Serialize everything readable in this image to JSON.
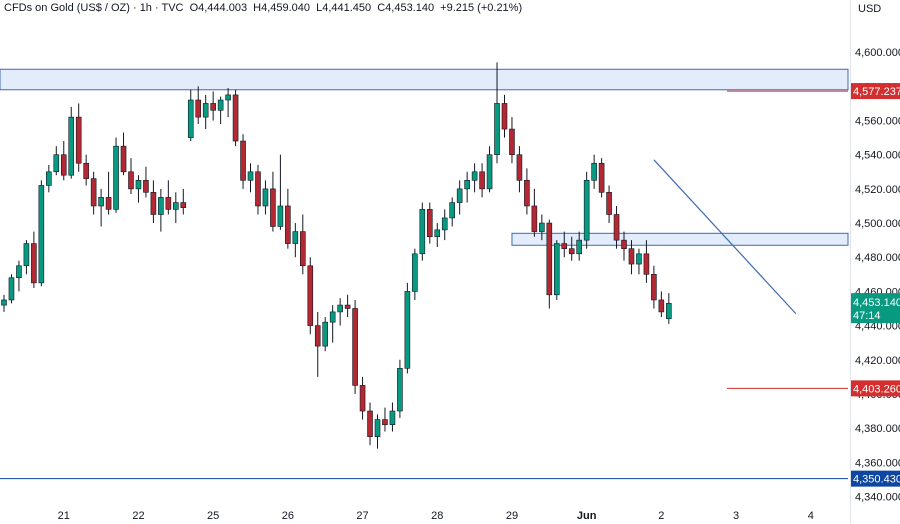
{
  "header": {
    "symbol": "CFDs on Gold (US$ / OZ) · 1h · TVC",
    "open": "O4,444.003",
    "high": "H4,459.040",
    "low": "L4,441.450",
    "close": "C4,453.140",
    "change": "+9.215 (+0.21%)"
  },
  "currency": "USD",
  "colors": {
    "up": "#26a69a",
    "down": "#ef5350",
    "wick": "#131722",
    "up_body": "#089981",
    "down_body": "#b22833",
    "zone_fill": "#e3ecfa",
    "zone_line": "#3d6bb3",
    "trend_line": "#3d6bb3",
    "level_red": "#d32f2f",
    "level_blue": "#0d47a1"
  },
  "chart_data": {
    "type": "candlestick",
    "title": "CFDs on Gold (US$ / OZ) · 1h · TVC",
    "ylim": [
      4335,
      4620
    ],
    "y_ticks": [
      4600,
      4580,
      4560,
      4540,
      4520,
      4500,
      4480,
      4460,
      4440,
      4420,
      4400,
      4380,
      4360,
      4340
    ],
    "y_tick_labels": [
      "4,600.000",
      "4,580.000",
      "4,560.000",
      "4,540.000",
      "4,520.000",
      "4,500.000",
      "4,480.000",
      "4,460.000",
      "4,440.000",
      "4,420.000",
      "4,400.000",
      "4,380.000",
      "4,360.000",
      "4,340.000"
    ],
    "x_labels": [
      {
        "label": "21",
        "slot": 8
      },
      {
        "label": "22",
        "slot": 18
      },
      {
        "label": "25",
        "slot": 28
      },
      {
        "label": "26",
        "slot": 38
      },
      {
        "label": "27",
        "slot": 48
      },
      {
        "label": "28",
        "slot": 58
      },
      {
        "label": "29",
        "slot": 68
      },
      {
        "label": "Jun",
        "slot": 78
      },
      {
        "label": "2",
        "slot": 88
      },
      {
        "label": "3",
        "slot": 98
      },
      {
        "label": "4",
        "slot": 108
      }
    ],
    "candles": [
      {
        "o": 4452,
        "h": 4458,
        "l": 4448,
        "c": 4455
      },
      {
        "o": 4455,
        "h": 4470,
        "l": 4453,
        "c": 4468
      },
      {
        "o": 4468,
        "h": 4478,
        "l": 4460,
        "c": 4475
      },
      {
        "o": 4475,
        "h": 4490,
        "l": 4470,
        "c": 4488
      },
      {
        "o": 4488,
        "h": 4495,
        "l": 4462,
        "c": 4465
      },
      {
        "o": 4465,
        "h": 4525,
        "l": 4463,
        "c": 4522
      },
      {
        "o": 4522,
        "h": 4534,
        "l": 4518,
        "c": 4530
      },
      {
        "o": 4530,
        "h": 4545,
        "l": 4528,
        "c": 4540
      },
      {
        "o": 4540,
        "h": 4548,
        "l": 4525,
        "c": 4528
      },
      {
        "o": 4528,
        "h": 4568,
        "l": 4526,
        "c": 4562
      },
      {
        "o": 4562,
        "h": 4570,
        "l": 4530,
        "c": 4535
      },
      {
        "o": 4535,
        "h": 4540,
        "l": 4522,
        "c": 4526
      },
      {
        "o": 4526,
        "h": 4530,
        "l": 4505,
        "c": 4510
      },
      {
        "o": 4510,
        "h": 4520,
        "l": 4498,
        "c": 4515
      },
      {
        "o": 4515,
        "h": 4530,
        "l": 4505,
        "c": 4508
      },
      {
        "o": 4508,
        "h": 4550,
        "l": 4506,
        "c": 4545
      },
      {
        "o": 4545,
        "h": 4553,
        "l": 4528,
        "c": 4530
      },
      {
        "o": 4530,
        "h": 4538,
        "l": 4517,
        "c": 4520
      },
      {
        "o": 4520,
        "h": 4528,
        "l": 4512,
        "c": 4525
      },
      {
        "o": 4525,
        "h": 4533,
        "l": 4515,
        "c": 4518
      },
      {
        "o": 4518,
        "h": 4525,
        "l": 4500,
        "c": 4505
      },
      {
        "o": 4505,
        "h": 4520,
        "l": 4495,
        "c": 4515
      },
      {
        "o": 4515,
        "h": 4525,
        "l": 4505,
        "c": 4508
      },
      {
        "o": 4508,
        "h": 4518,
        "l": 4500,
        "c": 4512
      },
      {
        "o": 4512,
        "h": 4520,
        "l": 4505,
        "c": 4509
      },
      {
        "o": 4550,
        "h": 4578,
        "l": 4548,
        "c": 4572
      },
      {
        "o": 4572,
        "h": 4580,
        "l": 4558,
        "c": 4562
      },
      {
        "o": 4562,
        "h": 4575,
        "l": 4555,
        "c": 4570
      },
      {
        "o": 4570,
        "h": 4577,
        "l": 4560,
        "c": 4566
      },
      {
        "o": 4566,
        "h": 4574,
        "l": 4558,
        "c": 4572
      },
      {
        "o": 4572,
        "h": 4579,
        "l": 4562,
        "c": 4575
      },
      {
        "o": 4575,
        "h": 4578,
        "l": 4545,
        "c": 4548
      },
      {
        "o": 4548,
        "h": 4552,
        "l": 4520,
        "c": 4525
      },
      {
        "o": 4525,
        "h": 4535,
        "l": 4518,
        "c": 4530
      },
      {
        "o": 4530,
        "h": 4534,
        "l": 4505,
        "c": 4510
      },
      {
        "o": 4510,
        "h": 4525,
        "l": 4505,
        "c": 4520
      },
      {
        "o": 4520,
        "h": 4530,
        "l": 4495,
        "c": 4498
      },
      {
        "o": 4498,
        "h": 4540,
        "l": 4496,
        "c": 4510
      },
      {
        "o": 4510,
        "h": 4520,
        "l": 4485,
        "c": 4488
      },
      {
        "o": 4488,
        "h": 4500,
        "l": 4480,
        "c": 4495
      },
      {
        "o": 4495,
        "h": 4505,
        "l": 4470,
        "c": 4475
      },
      {
        "o": 4475,
        "h": 4480,
        "l": 4435,
        "c": 4440
      },
      {
        "o": 4440,
        "h": 4448,
        "l": 4410,
        "c": 4428
      },
      {
        "o": 4428,
        "h": 4445,
        "l": 4425,
        "c": 4442
      },
      {
        "o": 4442,
        "h": 4452,
        "l": 4430,
        "c": 4448
      },
      {
        "o": 4448,
        "h": 4456,
        "l": 4440,
        "c": 4452
      },
      {
        "o": 4452,
        "h": 4458,
        "l": 4445,
        "c": 4450
      },
      {
        "o": 4450,
        "h": 4455,
        "l": 4400,
        "c": 4405
      },
      {
        "o": 4405,
        "h": 4410,
        "l": 4385,
        "c": 4390
      },
      {
        "o": 4390,
        "h": 4395,
        "l": 4370,
        "c": 4375
      },
      {
        "o": 4375,
        "h": 4388,
        "l": 4368,
        "c": 4385
      },
      {
        "o": 4385,
        "h": 4392,
        "l": 4378,
        "c": 4382
      },
      {
        "o": 4382,
        "h": 4395,
        "l": 4378,
        "c": 4390
      },
      {
        "o": 4390,
        "h": 4420,
        "l": 4386,
        "c": 4415
      },
      {
        "o": 4415,
        "h": 4465,
        "l": 4412,
        "c": 4460
      },
      {
        "o": 4460,
        "h": 4485,
        "l": 4455,
        "c": 4482
      },
      {
        "o": 4482,
        "h": 4512,
        "l": 4478,
        "c": 4508
      },
      {
        "o": 4508,
        "h": 4512,
        "l": 4488,
        "c": 4492
      },
      {
        "o": 4492,
        "h": 4500,
        "l": 4486,
        "c": 4496
      },
      {
        "o": 4496,
        "h": 4508,
        "l": 4490,
        "c": 4503
      },
      {
        "o": 4503,
        "h": 4515,
        "l": 4498,
        "c": 4512
      },
      {
        "o": 4512,
        "h": 4525,
        "l": 4505,
        "c": 4520
      },
      {
        "o": 4520,
        "h": 4530,
        "l": 4512,
        "c": 4525
      },
      {
        "o": 4525,
        "h": 4535,
        "l": 4518,
        "c": 4530
      },
      {
        "o": 4530,
        "h": 4535,
        "l": 4515,
        "c": 4520
      },
      {
        "o": 4520,
        "h": 4545,
        "l": 4518,
        "c": 4540
      },
      {
        "o": 4540,
        "h": 4594,
        "l": 4535,
        "c": 4570
      },
      {
        "o": 4570,
        "h": 4575,
        "l": 4550,
        "c": 4555
      },
      {
        "o": 4555,
        "h": 4562,
        "l": 4535,
        "c": 4540
      },
      {
        "o": 4540,
        "h": 4545,
        "l": 4518,
        "c": 4525
      },
      {
        "o": 4525,
        "h": 4532,
        "l": 4505,
        "c": 4510
      },
      {
        "o": 4510,
        "h": 4520,
        "l": 4492,
        "c": 4495
      },
      {
        "o": 4495,
        "h": 4505,
        "l": 4490,
        "c": 4500
      },
      {
        "o": 4500,
        "h": 4502,
        "l": 4450,
        "c": 4458
      },
      {
        "o": 4458,
        "h": 4490,
        "l": 4455,
        "c": 4488
      },
      {
        "o": 4488,
        "h": 4495,
        "l": 4480,
        "c": 4485
      },
      {
        "o": 4485,
        "h": 4492,
        "l": 4478,
        "c": 4482
      },
      {
        "o": 4482,
        "h": 4495,
        "l": 4478,
        "c": 4490
      },
      {
        "o": 4490,
        "h": 4530,
        "l": 4485,
        "c": 4525
      },
      {
        "o": 4525,
        "h": 4540,
        "l": 4520,
        "c": 4535
      },
      {
        "o": 4535,
        "h": 4538,
        "l": 4515,
        "c": 4518
      },
      {
        "o": 4518,
        "h": 4522,
        "l": 4500,
        "c": 4505
      },
      {
        "o": 4505,
        "h": 4510,
        "l": 4485,
        "c": 4490
      },
      {
        "o": 4490,
        "h": 4495,
        "l": 4478,
        "c": 4485
      },
      {
        "o": 4485,
        "h": 4490,
        "l": 4470,
        "c": 4476
      },
      {
        "o": 4476,
        "h": 4485,
        "l": 4470,
        "c": 4482
      },
      {
        "o": 4482,
        "h": 4490,
        "l": 4465,
        "c": 4470
      },
      {
        "o": 4470,
        "h": 4475,
        "l": 4450,
        "c": 4455
      },
      {
        "o": 4455,
        "h": 4460,
        "l": 4445,
        "c": 4448
      },
      {
        "o": 4444,
        "h": 4459,
        "l": 4441,
        "c": 4453
      }
    ],
    "zones": [
      {
        "name": "resistance-zone",
        "from": 4578,
        "to": 4590
      },
      {
        "name": "support-zone",
        "from": 4487,
        "to": 4494
      }
    ],
    "levels": [
      {
        "name": "level-4577",
        "value": 4577.237,
        "label": "4,577.237",
        "color": "#d32f2f"
      },
      {
        "name": "level-4403",
        "value": 4403.26,
        "label": "4,403.260",
        "color": "#d32f2f"
      },
      {
        "name": "level-4350",
        "value": 4350.43,
        "label": "4,350.430",
        "color": "#0d47a1"
      }
    ],
    "trendline": {
      "from": {
        "slot": 87,
        "value": 4537
      },
      "to": {
        "slot": 106,
        "value": 4447
      }
    },
    "last_price": {
      "value": 4453.14,
      "label": "4,453.140",
      "countdown": "47:14"
    }
  }
}
